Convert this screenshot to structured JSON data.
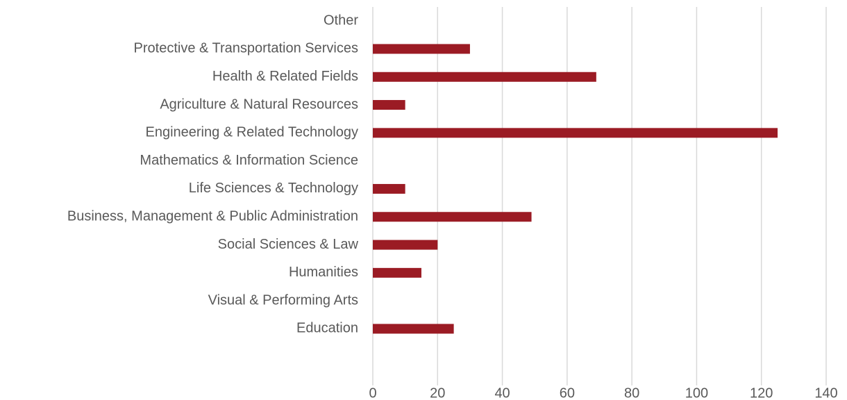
{
  "chart_data": {
    "type": "bar",
    "orientation": "horizontal",
    "categories": [
      "Other",
      "Protective & Transportation Services",
      "Health & Related Fields",
      "Agriculture & Natural Resources",
      "Engineering & Related Technology",
      "Mathematics & Information Science",
      "Life Sciences & Technology",
      "Business, Management & Public Administration",
      "Social Sciences & Law",
      "Humanities",
      "Visual & Performing Arts",
      "Education"
    ],
    "values": [
      0,
      30,
      69,
      10,
      125,
      0,
      10,
      49,
      20,
      15,
      0,
      25
    ],
    "color": "#9b1b24",
    "xlim": [
      0,
      140
    ],
    "xticks": [
      0,
      20,
      40,
      60,
      80,
      100,
      120,
      140
    ],
    "grid": true
  }
}
